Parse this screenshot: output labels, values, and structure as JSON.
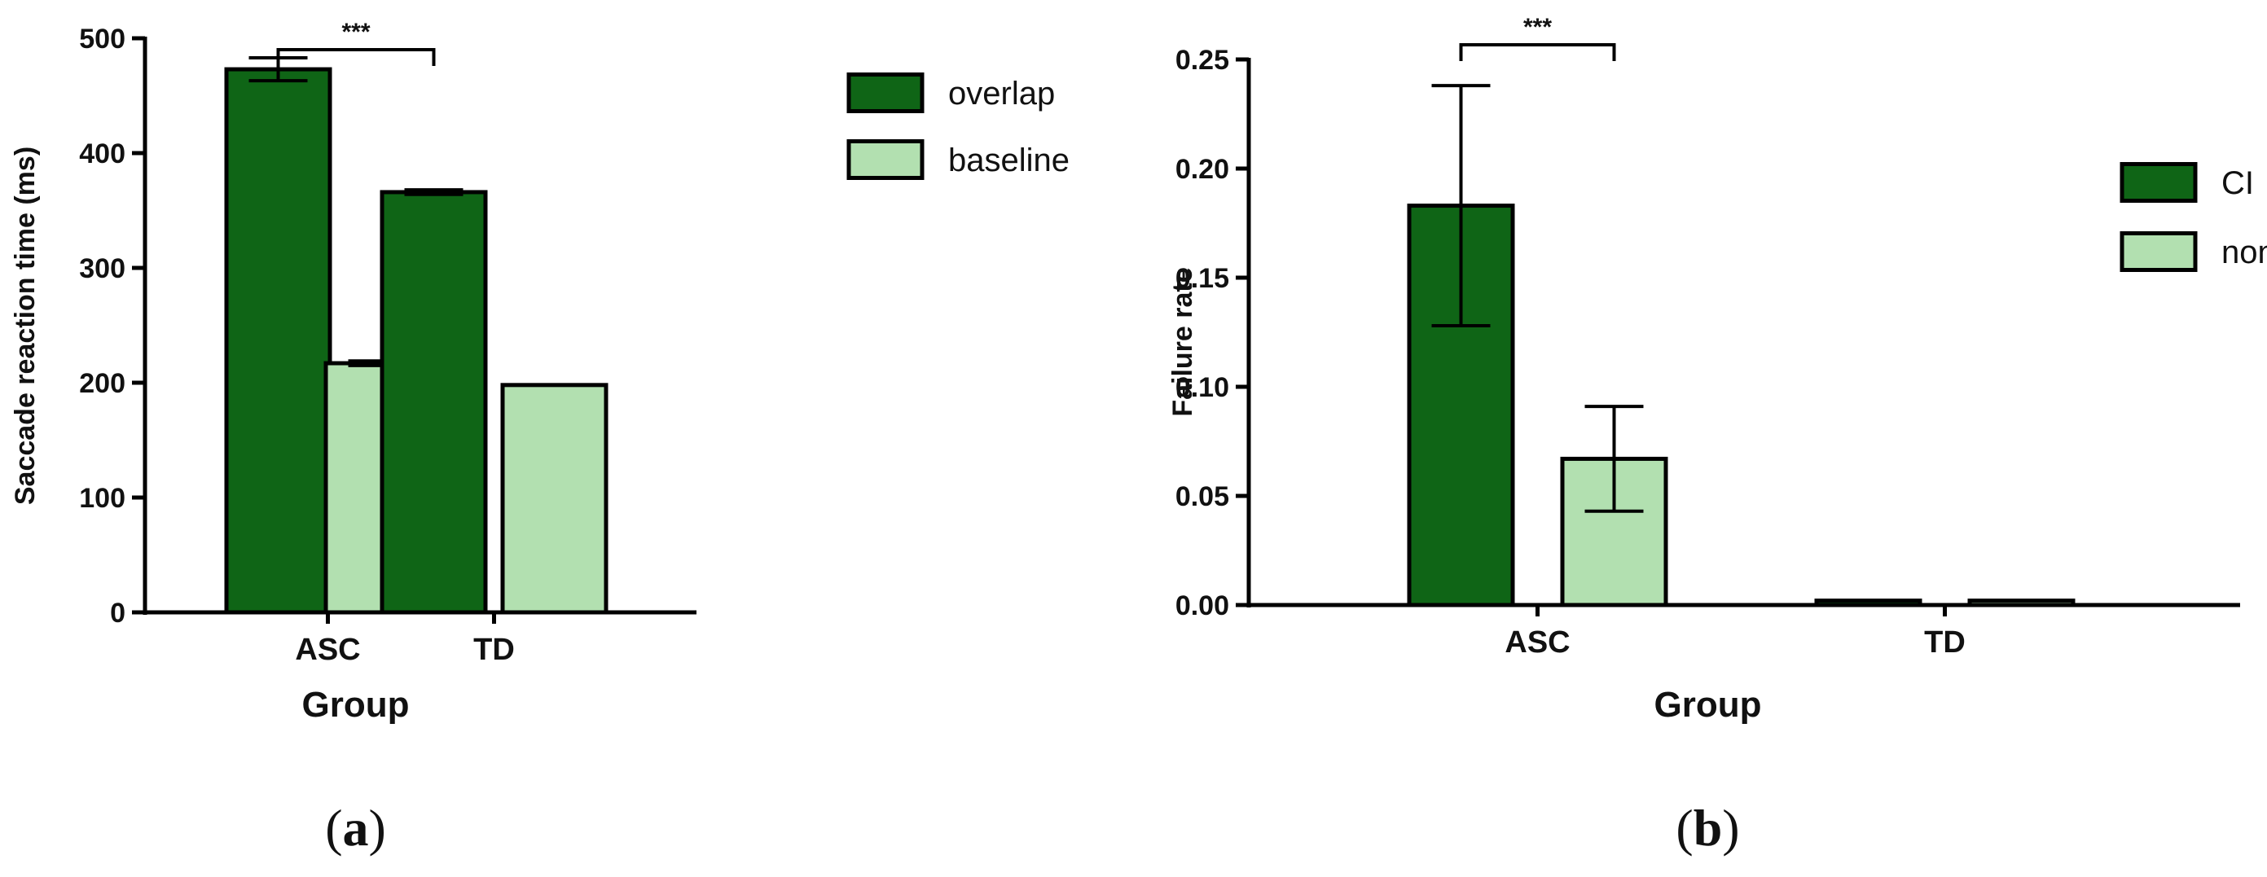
{
  "colors": {
    "dark": "#0f6516",
    "light": "#b2e0b0",
    "stroke": "#000000"
  },
  "chart_data": [
    {
      "type": "bar",
      "panel_label": "a",
      "xlabel": "Group",
      "ylabel": "Saccade reaction time (ms)",
      "categories": [
        "ASC",
        "TD"
      ],
      "ylim": [
        0,
        500
      ],
      "yticks": [
        0,
        100,
        200,
        300,
        400,
        500
      ],
      "ytick_labels": [
        "0",
        "100",
        "200",
        "300",
        "400",
        "500"
      ],
      "legend_position": "top-right",
      "series": [
        {
          "name": "overlap",
          "values": [
            473,
            366
          ],
          "errors": [
            10,
            2
          ],
          "color": "#0f6516"
        },
        {
          "name": "baseline",
          "values": [
            217,
            198
          ],
          "errors": [
            2,
            0
          ],
          "color": "#b2e0b0"
        }
      ],
      "significance": {
        "label": "***",
        "from": "ASC overlap",
        "to": "TD overlap"
      }
    },
    {
      "type": "bar",
      "panel_label": "b",
      "xlabel": "Group",
      "ylabel": "Failure rate",
      "categories": [
        "ASC",
        "TD"
      ],
      "ylim": [
        0,
        0.25
      ],
      "yticks": [
        0,
        0.05,
        0.1,
        0.15,
        0.2,
        0.25
      ],
      "ytick_labels": [
        "0.00",
        "0.05",
        "0.10",
        "0.15",
        "0.20",
        "0.25"
      ],
      "legend_position": "right",
      "series": [
        {
          "name": "CI",
          "values": [
            0.183,
            0.002
          ],
          "errors": [
            0.055,
            0
          ],
          "color": "#0f6516"
        },
        {
          "name": "non-CI",
          "values": [
            0.067,
            0.002
          ],
          "errors": [
            0.024,
            0
          ],
          "color": "#b2e0b0"
        }
      ],
      "significance": {
        "label": "***",
        "from": "ASC CI",
        "to": "ASC non-CI"
      }
    }
  ]
}
